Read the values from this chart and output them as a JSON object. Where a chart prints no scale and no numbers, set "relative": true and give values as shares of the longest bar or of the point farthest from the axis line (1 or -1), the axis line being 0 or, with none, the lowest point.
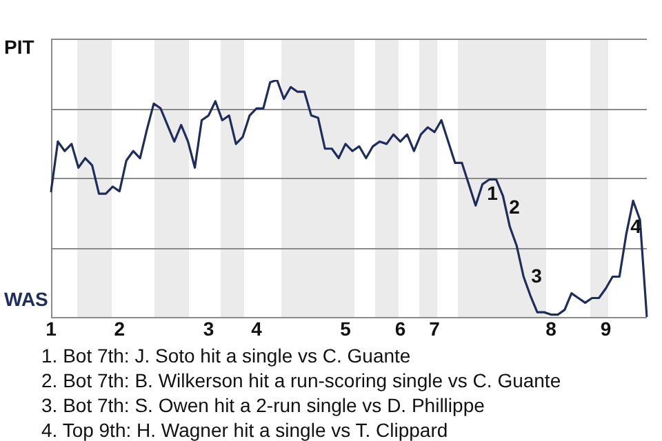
{
  "chart_data": {
    "type": "line",
    "relative": true,
    "categories": [
      "1",
      null,
      null,
      null,
      null,
      null,
      null,
      null,
      null,
      null,
      "2",
      null,
      null,
      null,
      null,
      null,
      null,
      null,
      null,
      null,
      null,
      null,
      null,
      "3",
      null,
      null,
      null,
      null,
      null,
      null,
      "4",
      null,
      null,
      null,
      null,
      null,
      null,
      null,
      null,
      null,
      null,
      null,
      null,
      "5",
      null,
      null,
      null,
      null,
      null,
      null,
      null,
      "6",
      null,
      null,
      null,
      null,
      "7",
      null,
      null,
      null,
      null,
      null,
      null,
      null,
      null,
      null,
      null,
      null,
      null,
      null,
      null,
      null,
      null,
      "8",
      null,
      null,
      null,
      null,
      null,
      null,
      null,
      "9",
      null,
      null,
      null,
      null,
      null,
      null
    ],
    "series": [
      {
        "values": [
          0.53,
          0.74,
          0.7,
          0.73,
          0.63,
          0.67,
          0.64,
          0.52,
          0.52,
          0.55,
          0.53,
          0.66,
          0.7,
          0.67,
          0.79,
          0.9,
          0.88,
          0.81,
          0.74,
          0.81,
          0.74,
          0.63,
          0.83,
          0.85,
          0.91,
          0.83,
          0.85,
          0.73,
          0.76,
          0.85,
          0.88,
          0.88,
          0.99,
          1,
          0.92,
          0.97,
          0.95,
          0.95,
          0.85,
          0.84,
          0.71,
          0.71,
          0.67,
          0.73,
          0.7,
          0.72,
          0.67,
          0.72,
          0.74,
          0.73,
          0.77,
          0.74,
          0.77,
          0.7,
          0.77,
          0.8,
          0.78,
          0.83,
          0.74,
          0.65,
          0.65,
          0.56,
          0.47,
          0.56,
          0.58,
          0.58,
          0.51,
          0.38,
          0.3,
          0.17,
          0.09,
          0.02,
          0.02,
          0.01,
          0.01,
          0.03,
          0.1,
          0.08,
          0.06,
          0.08,
          0.08,
          0.12,
          0.17,
          0.17,
          0.35,
          0.49,
          0.41,
          0
        ],
        "color": "#1f2d5c"
      }
    ],
    "grid": "y",
    "legend": false,
    "marker": "none",
    "annotations": [
      "PIT",
      "WAS",
      "1",
      "2",
      "3",
      "4",
      "1. Bot 7th: J. Soto hit a single vs C. Guante",
      "2. Bot 7th: B. Wilkerson hit a run-scoring single vs C. Guante",
      "3. Bot 7th: S. Owen hit a 2-run single vs D. Phillippe",
      "4. Top 9th: H. Wagner hit a single vs T. Clippard"
    ]
  }
}
